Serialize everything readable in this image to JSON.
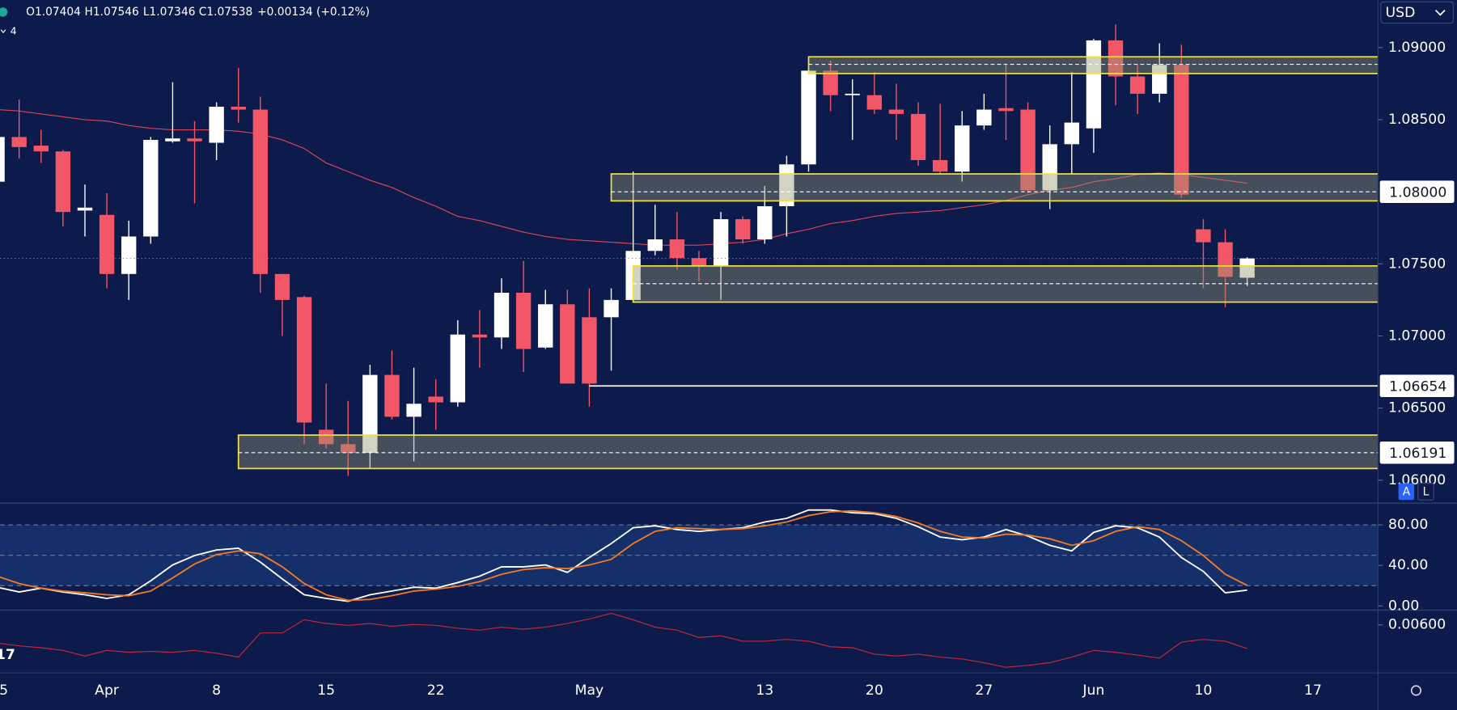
{
  "header": {
    "open": "O1.07404",
    "high": "H1.07546",
    "low": "L1.07346",
    "close": "C1.07538",
    "change": "+0.00134 (+0.12%)",
    "interval": "4"
  },
  "currency": "USD",
  "buttons": {
    "auto": "A",
    "log": "L"
  },
  "edge_text": "17",
  "chart_data": [
    {
      "type": "candlestick",
      "categories": [
        "5",
        null,
        null,
        null,
        null,
        "Apr",
        null,
        null,
        null,
        null,
        "8",
        null,
        null,
        null,
        null,
        "15",
        null,
        null,
        null,
        null,
        "22",
        null,
        null,
        null,
        null,
        null,
        null,
        "May",
        null,
        null,
        null,
        null,
        null,
        null,
        null,
        "13",
        null,
        null,
        null,
        null,
        "20",
        null,
        null,
        null,
        null,
        "27",
        null,
        null,
        null,
        null,
        "Jun",
        null,
        null,
        null,
        null,
        "10",
        null,
        null,
        null,
        null,
        "17"
      ],
      "open": [
        1.0807,
        1.0838,
        1.0832,
        1.0828,
        1.0787,
        1.0784,
        1.0743,
        1.0769,
        1.0835,
        1.0837,
        1.0834,
        1.0859,
        1.0857,
        1.0743,
        1.0727,
        1.0635,
        1.0625,
        1.0619,
        1.0673,
        1.0644,
        1.0658,
        1.0654,
        1.0701,
        1.0699,
        1.073,
        1.0692,
        1.0722,
        1.0713,
        1.0713,
        1.0725,
        1.0759,
        1.0767,
        1.0754,
        1.0749,
        1.0781,
        1.0767,
        1.079,
        1.0819,
        1.0884,
        1.0867,
        1.0867,
        1.0857,
        1.0854,
        1.0822,
        1.0814,
        1.0846,
        1.0858,
        1.0857,
        1.0801,
        1.0833,
        1.0844,
        1.0905,
        1.088,
        1.0868,
        1.0888,
        1.0774,
        1.0765,
        1.07404,
        null,
        null,
        null
      ],
      "high": [
        1.084,
        1.0864,
        1.0843,
        1.0829,
        1.0805,
        1.0799,
        1.078,
        1.0838,
        1.0876,
        1.0849,
        1.0862,
        1.0886,
        1.0866,
        1.0743,
        1.0728,
        1.0667,
        1.0655,
        1.068,
        1.069,
        1.0678,
        1.067,
        1.0711,
        1.0718,
        1.074,
        1.0752,
        1.0732,
        1.0732,
        1.0733,
        1.0733,
        1.0814,
        1.0791,
        1.0786,
        1.0759,
        1.0786,
        1.0783,
        1.0804,
        1.0825,
        1.0886,
        1.0891,
        1.0878,
        1.0883,
        1.0875,
        1.0862,
        1.0861,
        1.0856,
        1.0868,
        1.0889,
        1.0862,
        1.0846,
        1.0883,
        1.0906,
        1.0916,
        1.0888,
        1.0903,
        1.0902,
        1.0781,
        1.0774,
        1.07546,
        null,
        null,
        null
      ],
      "low": [
        1.0805,
        1.0823,
        1.082,
        1.0776,
        1.0769,
        1.0733,
        1.0725,
        1.0764,
        1.0834,
        1.0792,
        1.0822,
        1.0848,
        1.073,
        1.07,
        1.0625,
        1.0622,
        1.0603,
        1.0608,
        1.0642,
        1.0613,
        1.0635,
        1.0651,
        1.0678,
        1.0691,
        1.0675,
        1.0691,
        1.0667,
        1.0651,
        1.0676,
        1.0723,
        1.0756,
        1.0746,
        1.0738,
        1.0725,
        1.0764,
        1.0764,
        1.0769,
        1.0814,
        1.0856,
        1.0836,
        1.0854,
        1.0836,
        1.0818,
        1.0812,
        1.0807,
        1.0843,
        1.0836,
        1.0799,
        1.0788,
        1.0812,
        1.0827,
        1.086,
        1.0854,
        1.0862,
        1.0796,
        1.0733,
        1.072,
        1.07346,
        null,
        null,
        null
      ],
      "close": [
        1.0838,
        1.0831,
        1.0828,
        1.0786,
        1.0789,
        1.0743,
        1.0769,
        1.0836,
        1.0837,
        1.0835,
        1.0859,
        1.0857,
        1.0743,
        1.0725,
        1.064,
        1.0625,
        1.0619,
        1.0673,
        1.0644,
        1.0653,
        1.0654,
        1.0701,
        1.0699,
        1.073,
        1.0691,
        1.0722,
        1.0667,
        1.0667,
        1.0725,
        1.0759,
        1.0767,
        1.0754,
        1.0749,
        1.0781,
        1.0767,
        1.079,
        1.0819,
        1.0884,
        1.0867,
        1.0868,
        1.0857,
        1.0854,
        1.0822,
        1.0814,
        1.0846,
        1.0857,
        1.0856,
        1.0801,
        1.0833,
        1.0848,
        1.0905,
        1.088,
        1.0868,
        1.0888,
        1.0798,
        1.0765,
        1.0741,
        1.07538,
        null,
        null,
        null
      ],
      "up_color": "#ffffff",
      "down_color": "#f25767",
      "ylim": [
        1.0585,
        1.0933
      ],
      "yticks": [
        {
          "value": 1.06,
          "label": "1.06000"
        },
        {
          "value": 1.065,
          "label": "1.06500"
        },
        {
          "value": 1.07,
          "label": "1.07000"
        },
        {
          "value": 1.075,
          "label": "1.07500"
        },
        {
          "value": 1.085,
          "label": "1.08500"
        },
        {
          "value": 1.09,
          "label": "1.09000"
        }
      ],
      "ma": {
        "color": "#d9465a",
        "values": [
          1.0857,
          1.0856,
          1.0854,
          1.0852,
          1.085,
          1.0849,
          1.0846,
          1.0844,
          1.0843,
          1.0843,
          1.0843,
          1.0842,
          1.084,
          1.0836,
          1.083,
          1.082,
          1.0814,
          1.0808,
          1.0803,
          1.0796,
          1.079,
          1.0783,
          1.078,
          1.0776,
          1.0772,
          1.0769,
          1.0767,
          1.0766,
          1.0765,
          1.0764,
          1.0763,
          1.0763,
          1.0763,
          1.0764,
          1.0765,
          1.0767,
          1.0771,
          1.0774,
          1.0778,
          1.078,
          1.0783,
          1.0785,
          1.0786,
          1.0787,
          1.0789,
          1.0791,
          1.0794,
          1.0798,
          1.0801,
          1.0803,
          1.0807,
          1.0809,
          1.0812,
          1.0813,
          1.0812,
          1.081,
          1.0808,
          1.0806,
          null,
          null,
          null
        ]
      },
      "zones": [
        {
          "start": 37,
          "top": 1.08936,
          "bottom": 1.0882,
          "mid": 1.08884
        },
        {
          "start": 28,
          "top": 1.08124,
          "bottom": 1.07937,
          "mid": 1.08,
          "label": "1.08000"
        },
        {
          "start": 29,
          "top": 1.07486,
          "bottom": 1.07235,
          "mid": 1.07363
        },
        {
          "start": 11,
          "top": 1.06313,
          "bottom": 1.06081,
          "mid": 1.06191,
          "label": "1.06191"
        }
      ],
      "zone_color": "#f2e33c",
      "levels": [
        {
          "start": 27,
          "value": 1.06654,
          "label": "1.06654"
        }
      ],
      "last_price_line": true
    },
    {
      "type": "line",
      "ylim": [
        0,
        100
      ],
      "yticks": [
        {
          "value": 0,
          "label": "0.00"
        },
        {
          "value": 40,
          "label": "40.00"
        },
        {
          "value": 80,
          "label": "80.00"
        }
      ],
      "levels": [
        20,
        50,
        80
      ],
      "band": [
        20,
        80
      ],
      "series": [
        {
          "color": "#ffffff",
          "values": [
            18.4,
            13.8,
            17.5,
            13.8,
            11.0,
            7.4,
            11.0,
            24.8,
            40.5,
            49.7,
            55.2,
            57.0,
            43.2,
            26.7,
            11.0,
            7.4,
            4.6,
            11.0,
            14.7,
            18.4,
            17.5,
            23.0,
            29.4,
            38.6,
            38.6,
            40.5,
            33.1,
            47.8,
            61.6,
            77.2,
            79.1,
            75.4,
            73.6,
            75.4,
            77.2,
            82.8,
            86.4,
            94.7,
            94.7,
            92.0,
            91.0,
            86.4,
            78.2,
            68.0,
            65.3,
            68.0,
            75.4,
            69.0,
            59.8,
            54.3,
            72.6,
            79.1,
            77.2,
            68.0,
            47.8,
            34.0,
            12.9,
            15.6,
            null,
            null,
            null
          ]
        },
        {
          "color": "#f47a22",
          "values": [
            29.4,
            22.1,
            17.5,
            14.7,
            12.9,
            11.0,
            10.1,
            14.7,
            27.6,
            41.4,
            50.6,
            54.3,
            51.5,
            38.6,
            22.1,
            11.0,
            5.5,
            6.4,
            10.1,
            14.7,
            16.6,
            19.3,
            23.9,
            31.3,
            35.9,
            37.7,
            36.8,
            40.5,
            46.0,
            61.6,
            73.6,
            77.2,
            76.3,
            75.4,
            76.3,
            79.1,
            82.8,
            89.2,
            92.9,
            93.8,
            92.0,
            88.3,
            81.8,
            73.6,
            68.0,
            67.1,
            70.8,
            69.9,
            66.2,
            59.8,
            64.4,
            73.6,
            78.2,
            75.4,
            64.4,
            49.7,
            31.3,
            20.2,
            null,
            null,
            null
          ]
        }
      ]
    },
    {
      "type": "line",
      "ylim": [
        0.004,
        0.0065
      ],
      "yticks": [
        {
          "value": 0.006,
          "label": "0.00600"
        }
      ],
      "series": [
        {
          "color": "#c2283c",
          "values": [
            0.00521,
            0.00509,
            0.00501,
            0.00489,
            0.00465,
            0.00489,
            0.00481,
            0.00485,
            0.00481,
            0.00489,
            0.00477,
            0.0046,
            0.00565,
            0.00565,
            0.00622,
            0.00606,
            0.00598,
            0.00606,
            0.00594,
            0.00602,
            0.00598,
            0.00585,
            0.00577,
            0.0059,
            0.00581,
            0.0059,
            0.00606,
            0.00626,
            0.0065,
            0.00622,
            0.0059,
            0.00577,
            0.00545,
            0.00553,
            0.00529,
            0.00529,
            0.00537,
            0.00529,
            0.00505,
            0.00501,
            0.00473,
            0.00465,
            0.00473,
            0.0046,
            0.00452,
            0.00436,
            0.00416,
            0.00424,
            0.00436,
            0.0046,
            0.00489,
            0.00481,
            0.00469,
            0.00456,
            0.00525,
            0.00537,
            0.00529,
            0.00497,
            null,
            null,
            null
          ]
        }
      ]
    }
  ]
}
